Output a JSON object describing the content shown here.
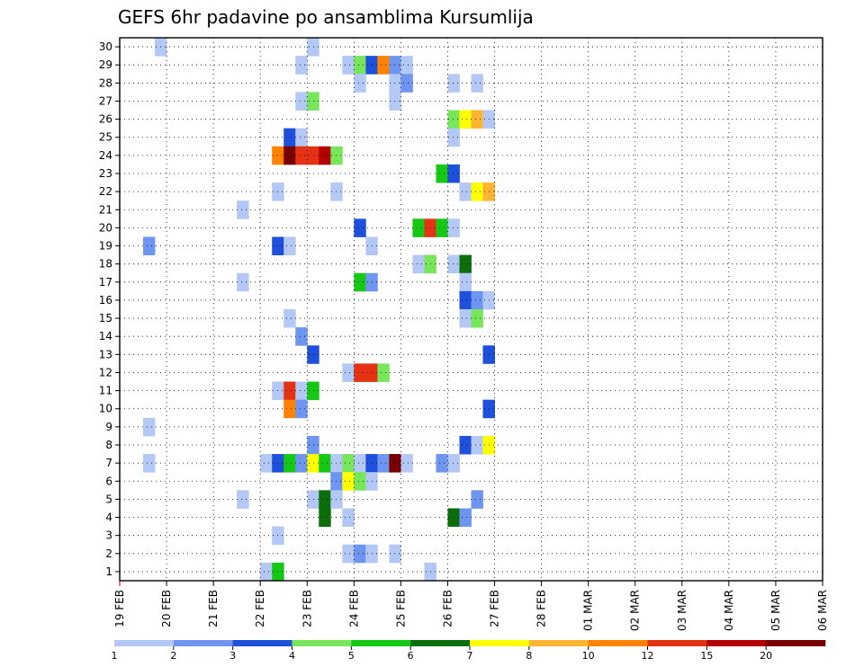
{
  "title": "GEFS 6hr padavine po ansamblima Kursumlija",
  "chart_data": {
    "type": "heatmap",
    "title": "GEFS 6hr padavine po ansamblima Kursumlija",
    "xlabel": "",
    "ylabel": "",
    "x_tick_labels": [
      "19 FEB",
      "20 FEB",
      "21 FEB",
      "22 FEB",
      "23 FEB",
      "24 FEB",
      "25 FEB",
      "26 FEB",
      "27 FEB",
      "28 FEB",
      "01 MAR",
      "02 MAR",
      "03 MAR",
      "04 MAR",
      "05 MAR",
      "06 MAR"
    ],
    "y_tick_labels": [
      1,
      2,
      3,
      4,
      5,
      6,
      7,
      8,
      9,
      10,
      11,
      12,
      13,
      14,
      15,
      16,
      17,
      18,
      19,
      20,
      21,
      22,
      23,
      24,
      25,
      26,
      27,
      28,
      29,
      30
    ],
    "xlim": [
      0,
      60
    ],
    "ylim": [
      0.5,
      30.5
    ],
    "grid": true,
    "legend_position": "bottom",
    "colorbar": {
      "levels": [
        1,
        2,
        3,
        4,
        5,
        6,
        7,
        8,
        10,
        12,
        15,
        20
      ],
      "colors": [
        "#b4c8f5",
        "#6e96f0",
        "#1e50dc",
        "#78e65a",
        "#14c814",
        "#0a6e0a",
        "#ffff00",
        "#ffb432",
        "#ff8200",
        "#e63214",
        "#b40000",
        "#780000"
      ]
    },
    "cell_note": "cells: [ensemble member, 6-hour step from 19 FEB 00z, color class index]",
    "cells": [
      [
        30,
        3,
        0
      ],
      [
        30,
        16,
        0
      ],
      [
        29,
        15,
        0
      ],
      [
        29,
        19,
        0
      ],
      [
        29,
        20,
        3
      ],
      [
        29,
        21,
        2
      ],
      [
        29,
        22,
        8
      ],
      [
        29,
        23,
        1
      ],
      [
        29,
        24,
        0
      ],
      [
        28,
        20,
        0
      ],
      [
        28,
        23,
        0
      ],
      [
        28,
        24,
        1
      ],
      [
        28,
        28,
        0
      ],
      [
        28,
        30,
        0
      ],
      [
        27,
        15,
        0
      ],
      [
        27,
        16,
        3
      ],
      [
        27,
        23,
        0
      ],
      [
        26,
        28,
        3
      ],
      [
        26,
        29,
        6
      ],
      [
        26,
        30,
        7
      ],
      [
        26,
        31,
        0
      ],
      [
        25,
        14,
        2
      ],
      [
        25,
        15,
        0
      ],
      [
        25,
        28,
        0
      ],
      [
        24,
        13,
        8
      ],
      [
        24,
        14,
        11
      ],
      [
        24,
        15,
        9
      ],
      [
        24,
        16,
        9
      ],
      [
        24,
        17,
        10
      ],
      [
        24,
        18,
        3
      ],
      [
        23,
        27,
        4
      ],
      [
        23,
        28,
        2
      ],
      [
        22,
        13,
        0
      ],
      [
        22,
        18,
        0
      ],
      [
        22,
        29,
        0
      ],
      [
        22,
        30,
        6
      ],
      [
        22,
        31,
        7
      ],
      [
        21,
        10,
        0
      ],
      [
        20,
        20,
        2
      ],
      [
        20,
        25,
        4
      ],
      [
        20,
        26,
        9
      ],
      [
        20,
        27,
        4
      ],
      [
        20,
        28,
        0
      ],
      [
        19,
        2,
        1
      ],
      [
        19,
        13,
        2
      ],
      [
        19,
        14,
        0
      ],
      [
        19,
        21,
        0
      ],
      [
        18,
        25,
        0
      ],
      [
        18,
        26,
        3
      ],
      [
        18,
        28,
        0
      ],
      [
        18,
        29,
        5
      ],
      [
        17,
        10,
        0
      ],
      [
        17,
        20,
        4
      ],
      [
        17,
        21,
        1
      ],
      [
        17,
        29,
        0
      ],
      [
        16,
        29,
        2
      ],
      [
        16,
        30,
        1
      ],
      [
        16,
        31,
        0
      ],
      [
        15,
        14,
        0
      ],
      [
        15,
        29,
        0
      ],
      [
        15,
        30,
        3
      ],
      [
        14,
        15,
        1
      ],
      [
        13,
        16,
        2
      ],
      [
        13,
        31,
        2
      ],
      [
        12,
        19,
        0
      ],
      [
        12,
        20,
        9
      ],
      [
        12,
        21,
        9
      ],
      [
        12,
        22,
        3
      ],
      [
        11,
        13,
        0
      ],
      [
        11,
        14,
        9
      ],
      [
        11,
        15,
        0
      ],
      [
        11,
        16,
        4
      ],
      [
        10,
        14,
        8
      ],
      [
        10,
        15,
        1
      ],
      [
        10,
        31,
        2
      ],
      [
        9,
        2,
        0
      ],
      [
        8,
        16,
        1
      ],
      [
        8,
        29,
        2
      ],
      [
        8,
        30,
        0
      ],
      [
        8,
        31,
        6
      ],
      [
        7,
        2,
        0
      ],
      [
        7,
        12,
        0
      ],
      [
        7,
        13,
        2
      ],
      [
        7,
        14,
        4
      ],
      [
        7,
        15,
        1
      ],
      [
        7,
        16,
        6
      ],
      [
        7,
        17,
        4
      ],
      [
        7,
        18,
        0
      ],
      [
        7,
        19,
        3
      ],
      [
        7,
        20,
        0
      ],
      [
        7,
        21,
        2
      ],
      [
        7,
        22,
        1
      ],
      [
        7,
        23,
        11
      ],
      [
        7,
        24,
        0
      ],
      [
        7,
        27,
        1
      ],
      [
        7,
        28,
        0
      ],
      [
        6,
        18,
        1
      ],
      [
        6,
        19,
        6
      ],
      [
        6,
        20,
        3
      ],
      [
        6,
        21,
        0
      ],
      [
        5,
        10,
        0
      ],
      [
        5,
        16,
        0
      ],
      [
        5,
        17,
        5
      ],
      [
        5,
        18,
        0
      ],
      [
        5,
        30,
        1
      ],
      [
        4,
        17,
        5
      ],
      [
        4,
        19,
        0
      ],
      [
        4,
        28,
        5
      ],
      [
        4,
        29,
        1
      ],
      [
        3,
        13,
        0
      ],
      [
        2,
        19,
        0
      ],
      [
        2,
        20,
        1
      ],
      [
        2,
        21,
        0
      ],
      [
        2,
        23,
        0
      ],
      [
        1,
        12,
        0
      ],
      [
        1,
        13,
        4
      ],
      [
        1,
        26,
        0
      ]
    ]
  }
}
